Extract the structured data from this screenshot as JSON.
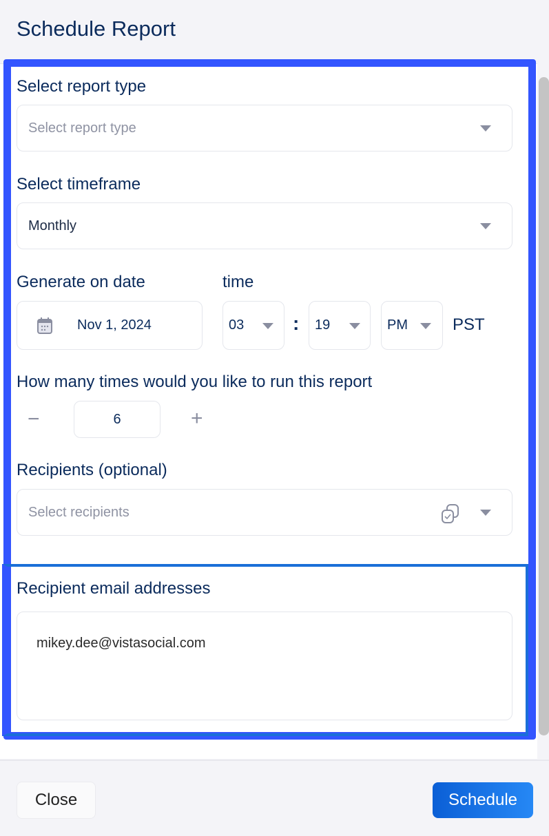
{
  "dialog": {
    "title": "Schedule Report"
  },
  "report_type": {
    "label": "Select report type",
    "placeholder": "Select report type"
  },
  "timeframe": {
    "label": "Select timeframe",
    "value": "Monthly"
  },
  "date": {
    "label": "Generate on date",
    "value": "Nov 1, 2024"
  },
  "time": {
    "label": "time",
    "hour": "03",
    "separator": ":",
    "minute": "19",
    "meridiem": "PM",
    "timezone": "PST"
  },
  "runs": {
    "label": "How many times would you like to run this report",
    "value": "6",
    "minus": "−",
    "plus": "+"
  },
  "recipients": {
    "label": "Recipients (optional)",
    "placeholder": "Select recipients"
  },
  "emails": {
    "label": "Recipient email addresses",
    "value": "mikey.dee@vistasocial.com"
  },
  "footer": {
    "close_label": "Close",
    "schedule_label": "Schedule"
  },
  "colors": {
    "highlight": "#3355ff",
    "primary": "#0b5fd6",
    "text": "#0b2b5c"
  }
}
